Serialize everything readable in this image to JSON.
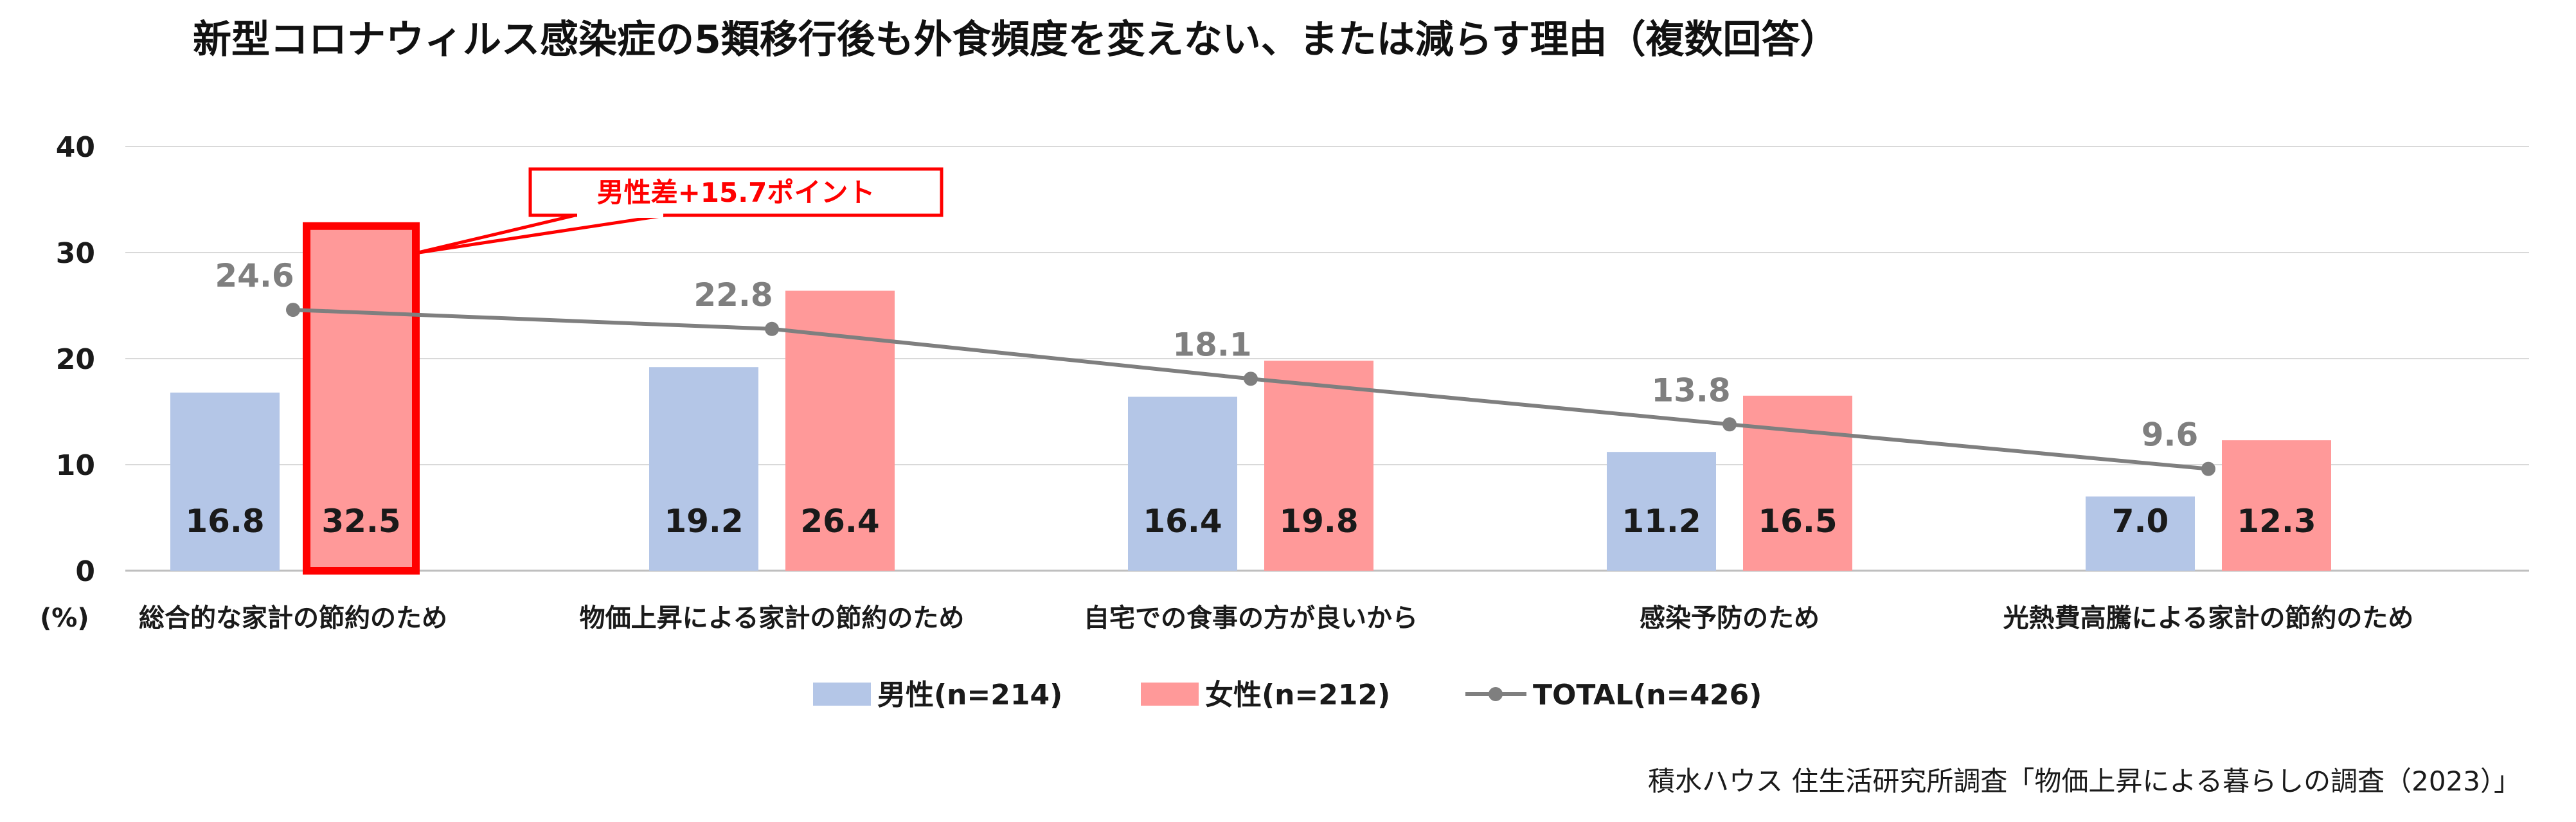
{
  "chart_data": {
    "type": "bar",
    "title": "新型コロナウィルス感染症の5類移行後も外食頻度を変えない、または減らす理由（複数回答）",
    "ylabel": "(%)",
    "ylim": [
      0,
      40
    ],
    "yticks": [
      "0",
      "10",
      "20",
      "30",
      "40"
    ],
    "grid": true,
    "legend_position": "bottom",
    "categories": [
      "総合的な家計の節約のため",
      "物価上昇による家計の節約のため",
      "自宅での食事の方が良いから",
      "感染予防のため",
      "光熱費高騰による家計の節約のため"
    ],
    "series": [
      {
        "name": "男性(n=214)",
        "type": "bar",
        "color": "#b4c6e7",
        "values": [
          16.8,
          19.2,
          16.4,
          11.2,
          7.0
        ],
        "labels": [
          "16.8",
          "19.2",
          "16.4",
          "11.2",
          "7.0"
        ]
      },
      {
        "name": "女性(n=212)",
        "type": "bar",
        "color": "#ff9999",
        "values": [
          32.5,
          26.4,
          19.8,
          16.5,
          12.3
        ],
        "labels": [
          "32.5",
          "26.4",
          "19.8",
          "16.5",
          "12.3"
        ]
      },
      {
        "name": "TOTAL(n=426)",
        "type": "line",
        "color": "#7f7f7f",
        "values": [
          24.6,
          22.8,
          18.1,
          13.8,
          9.6
        ],
        "labels": [
          "24.6",
          "22.8",
          "18.1",
          "13.8",
          "9.6"
        ]
      }
    ],
    "annotation": {
      "text": "男性差+15.7ポイント",
      "category_index": 0,
      "series_index": 1,
      "color": "#ff0000"
    },
    "source": "積水ハウス 住生活研究所調査「物価上昇による暮らしの調査（2023）」"
  }
}
